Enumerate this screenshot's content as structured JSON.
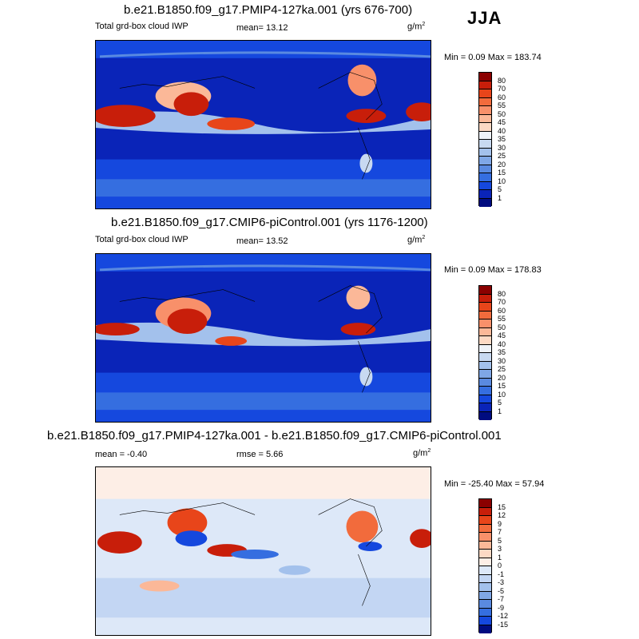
{
  "season": "JJA",
  "colorbar_abs": {
    "labels": [
      "80",
      "70",
      "60",
      "55",
      "50",
      "45",
      "40",
      "35",
      "30",
      "25",
      "20",
      "15",
      "10",
      "5",
      "1"
    ],
    "colors": [
      "#8b0000",
      "#c81e0a",
      "#e8451a",
      "#f26b3c",
      "#f8906a",
      "#fbb898",
      "#fcd9c4",
      "#eef2f8",
      "#c8d9f1",
      "#a3c1ec",
      "#7fa7e6",
      "#5a8ae0",
      "#356ee0",
      "#1548de",
      "#0a24b8",
      "#000c80"
    ]
  },
  "colorbar_diff": {
    "labels": [
      "15",
      "12",
      "9",
      "7",
      "5",
      "3",
      "1",
      "0",
      "-1",
      "-3",
      "-5",
      "-7",
      "-9",
      "-12",
      "-15"
    ],
    "colors": [
      "#8b0000",
      "#c81e0a",
      "#e8451a",
      "#f26b3c",
      "#f8906a",
      "#fbb898",
      "#fcd9c4",
      "#fdeee6",
      "#dde8f8",
      "#c3d6f3",
      "#a3c1ec",
      "#7fa7e6",
      "#5a8ae0",
      "#356ee0",
      "#1548de",
      "#000c80"
    ]
  },
  "panels": [
    {
      "title": "b.e21.B1850.f09_g17.PMIP4-127ka.001 (yrs 676-700)",
      "left_label": "Total grd-box cloud IWP",
      "mean_label": "mean=  13.12",
      "units": "g/m",
      "units_exp": "2",
      "minmax": "Min =   0.09 Max = 183.74"
    },
    {
      "title": "b.e21.B1850.f09_g17.CMIP6-piControl.001 (yrs 1176-1200)",
      "left_label": "Total grd-box cloud IWP",
      "mean_label": "mean=  13.52",
      "units": "g/m",
      "units_exp": "2",
      "minmax": "Min =   0.09 Max = 178.83"
    },
    {
      "title": "b.e21.B1850.f09_g17.PMIP4-127ka.001 - b.e21.B1850.f09_g17.CMIP6-piControl.001",
      "left_label": "mean =  -0.40",
      "mean_label": "rmse =   5.66",
      "units": "g/m",
      "units_exp": "2",
      "minmax": "Min = -25.40 Max =  57.94"
    }
  ]
}
